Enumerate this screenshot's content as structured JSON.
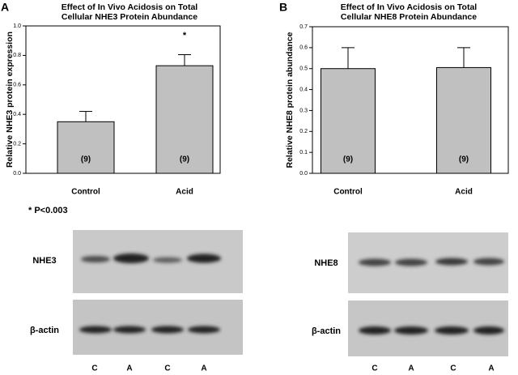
{
  "chart_data": [
    {
      "type": "bar",
      "panel_label": "A",
      "title": [
        "Effect of In Vivo Acidosis on Total",
        "Cellular NHE3 Protein Abundance"
      ],
      "y_label": "Relative NHE3 protein expression",
      "categories": [
        "Control",
        "Acid"
      ],
      "values": [
        0.35,
        0.73
      ],
      "errors": [
        0.07,
        0.075
      ],
      "bar_labels": [
        "(9)",
        "(9)"
      ],
      "color": "#c0c0c0",
      "ylim": [
        0,
        1
      ],
      "yticks": [
        {
          "value": 0,
          "label": "0.0"
        },
        0.2,
        0.4,
        0.6,
        0.8,
        {
          "value": 1,
          "label": "1.0"
        }
      ],
      "annotations": [
        "*",
        "* P<0.003"
      ]
    },
    {
      "type": "bar",
      "panel_label": "B",
      "title": [
        "Effect of In Vivo Acidosis on Total",
        "Cellular NHE8 Protein Abundance"
      ],
      "y_label": "Relative NHE8 protein abundance",
      "categories": [
        "Control",
        "Acid"
      ],
      "values": [
        0.5,
        0.505
      ],
      "errors": [
        0.1,
        0.095
      ],
      "bar_labels": [
        "(9)",
        "(9)"
      ],
      "color": "#c0c0c0",
      "ylim": [
        0,
        0.7
      ],
      "yticks": [
        {
          "value": 0,
          "label": "0.0"
        },
        0.1,
        0.2,
        0.3,
        0.4,
        0.5,
        0.6,
        0.7
      ]
    }
  ],
  "blots": [
    {
      "rows": [
        "NHE3",
        "β-actin"
      ],
      "lanes": [
        "C",
        "A",
        "C",
        "A"
      ]
    },
    {
      "rows": [
        "NHE8",
        "β-actin"
      ],
      "lanes": [
        "C",
        "A",
        "C",
        "A"
      ]
    }
  ]
}
